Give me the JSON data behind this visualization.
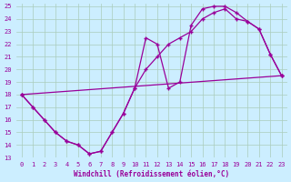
{
  "xlabel": "Windchill (Refroidissement éolien,°C)",
  "background_color": "#cceeff",
  "grid_color": "#aaccbb",
  "line_color": "#990099",
  "xlim": [
    -0.5,
    23.5
  ],
  "ylim": [
    13,
    25.2
  ],
  "xticks": [
    0,
    1,
    2,
    3,
    4,
    5,
    6,
    7,
    8,
    9,
    10,
    11,
    12,
    13,
    14,
    15,
    16,
    17,
    18,
    19,
    20,
    21,
    22,
    23
  ],
  "yticks": [
    13,
    14,
    15,
    16,
    17,
    18,
    19,
    20,
    21,
    22,
    23,
    24,
    25
  ],
  "line1_x": [
    0,
    1,
    2,
    3,
    4,
    5,
    6,
    7,
    8,
    9,
    10,
    11,
    12,
    13,
    14,
    15,
    16,
    17,
    18,
    19,
    20,
    21,
    22,
    23
  ],
  "line1_y": [
    18.0,
    17.0,
    16.0,
    15.0,
    14.3,
    14.0,
    13.3,
    13.5,
    15.0,
    16.5,
    18.5,
    22.5,
    22.0,
    18.5,
    19.0,
    23.5,
    24.8,
    25.0,
    25.0,
    24.5,
    23.8,
    23.2,
    21.2,
    19.5
  ],
  "line2_x": [
    0,
    1,
    2,
    3,
    4,
    5,
    6,
    7,
    8,
    9,
    10,
    11,
    12,
    13,
    14,
    15,
    16,
    17,
    18,
    19,
    20,
    21,
    22,
    23
  ],
  "line2_y": [
    18.0,
    17.0,
    16.0,
    15.0,
    14.3,
    14.0,
    13.3,
    13.5,
    15.0,
    16.5,
    18.5,
    20.0,
    21.0,
    22.0,
    22.5,
    23.0,
    24.0,
    24.5,
    24.8,
    24.0,
    23.8,
    23.2,
    21.2,
    19.5
  ],
  "line3_x": [
    0,
    23
  ],
  "line3_y": [
    18.0,
    19.5
  ]
}
